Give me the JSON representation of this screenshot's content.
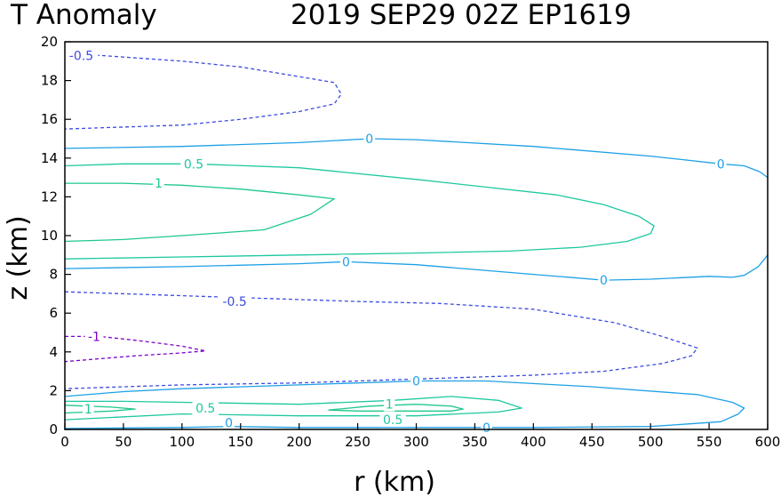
{
  "chart_data": {
    "type": "contour",
    "title_left": "T Anomaly",
    "title_right": "2019  SEP29  02Z    EP1619",
    "xlabel": "r (km)",
    "ylabel": "z (km)",
    "xlim": [
      0,
      600
    ],
    "ylim": [
      0,
      20
    ],
    "xticks": [
      "0",
      "50",
      "100",
      "150",
      "200",
      "250",
      "300",
      "350",
      "400",
      "450",
      "500",
      "550",
      "600"
    ],
    "yticks": [
      "0",
      "2",
      "4",
      "6",
      "8",
      "10",
      "12",
      "14",
      "16",
      "18",
      "20"
    ],
    "grid": false,
    "colors": {
      "neg_one": "#7b00c8",
      "neg_half": "#3c4be0",
      "zero": "#1ea0e6",
      "pos_half": "#1ec8a0",
      "pos_one": "#1ec88c"
    },
    "contours": [
      {
        "level": "-0.5",
        "style": "dashed",
        "color_key": "neg_half",
        "points": [
          [
            0,
            19.3
          ],
          [
            30,
            19.3
          ],
          [
            100,
            19.0
          ],
          [
            150,
            18.7
          ],
          [
            200,
            18.2
          ],
          [
            230,
            17.9
          ],
          [
            236,
            17.3
          ],
          [
            230,
            16.8
          ],
          [
            200,
            16.4
          ],
          [
            150,
            16.0
          ],
          [
            100,
            15.7
          ],
          [
            50,
            15.6
          ],
          [
            0,
            15.5
          ]
        ]
      },
      {
        "level": "0",
        "style": "solid",
        "color_key": "zero",
        "points": [
          [
            0,
            14.5
          ],
          [
            100,
            14.6
          ],
          [
            200,
            14.8
          ],
          [
            260,
            15.0
          ],
          [
            300,
            14.95
          ],
          [
            400,
            14.6
          ],
          [
            500,
            14.1
          ],
          [
            560,
            13.7
          ],
          [
            580,
            13.6
          ],
          [
            593,
            13.3
          ],
          [
            600,
            13.0
          ]
        ]
      },
      {
        "level": "0.5",
        "style": "solid",
        "color_key": "pos_half",
        "points": [
          [
            0,
            13.6
          ],
          [
            50,
            13.7
          ],
          [
            110,
            13.7
          ],
          [
            200,
            13.5
          ],
          [
            300,
            12.9
          ],
          [
            360,
            12.5
          ],
          [
            420,
            12.1
          ],
          [
            460,
            11.6
          ],
          [
            490,
            11.0
          ],
          [
            503,
            10.5
          ],
          [
            500,
            10.1
          ],
          [
            480,
            9.7
          ],
          [
            440,
            9.4
          ],
          [
            380,
            9.2
          ],
          [
            300,
            9.1
          ],
          [
            200,
            9.0
          ],
          [
            100,
            8.9
          ],
          [
            0,
            8.8
          ]
        ]
      },
      {
        "level": "1",
        "style": "solid",
        "color_key": "pos_one",
        "points": [
          [
            0,
            12.7
          ],
          [
            50,
            12.7
          ],
          [
            100,
            12.6
          ],
          [
            150,
            12.4
          ],
          [
            200,
            12.1
          ],
          [
            230,
            11.9
          ],
          [
            210,
            11.1
          ],
          [
            170,
            10.3
          ],
          [
            100,
            10.0
          ],
          [
            50,
            9.8
          ],
          [
            0,
            9.7
          ]
        ]
      },
      {
        "level": "0",
        "style": "solid",
        "color_key": "zero",
        "points": [
          [
            0,
            8.3
          ],
          [
            100,
            8.4
          ],
          [
            200,
            8.55
          ],
          [
            240,
            8.65
          ],
          [
            300,
            8.5
          ],
          [
            400,
            8.0
          ],
          [
            460,
            7.7
          ],
          [
            500,
            7.75
          ],
          [
            550,
            7.9
          ],
          [
            570,
            7.85
          ],
          [
            580,
            7.95
          ],
          [
            592,
            8.4
          ],
          [
            600,
            9.0
          ]
        ]
      },
      {
        "level": "-0.5",
        "style": "dashed",
        "color_key": "neg_half",
        "points": [
          [
            0,
            7.1
          ],
          [
            100,
            6.9
          ],
          [
            200,
            6.7
          ],
          [
            250,
            6.6
          ],
          [
            320,
            6.5
          ],
          [
            400,
            6.2
          ],
          [
            470,
            5.5
          ],
          [
            510,
            4.8
          ],
          [
            540,
            4.2
          ],
          [
            535,
            3.8
          ],
          [
            510,
            3.4
          ],
          [
            460,
            3.0
          ],
          [
            400,
            2.8
          ],
          [
            300,
            2.6
          ],
          [
            200,
            2.4
          ],
          [
            100,
            2.3
          ],
          [
            0,
            2.1
          ]
        ]
      },
      {
        "level": "-1",
        "style": "dashed",
        "color_key": "neg_one",
        "points": [
          [
            0,
            4.8
          ],
          [
            30,
            4.8
          ],
          [
            60,
            4.6
          ],
          [
            100,
            4.3
          ],
          [
            120,
            4.05
          ],
          [
            100,
            3.95
          ],
          [
            60,
            3.8
          ],
          [
            0,
            3.5
          ]
        ]
      },
      {
        "level": "0",
        "style": "solid",
        "color_key": "zero",
        "points": [
          [
            0,
            1.7
          ],
          [
            50,
            1.95
          ],
          [
            100,
            2.1
          ],
          [
            200,
            2.3
          ],
          [
            300,
            2.5
          ],
          [
            360,
            2.5
          ],
          [
            450,
            2.2
          ],
          [
            540,
            1.8
          ],
          [
            570,
            1.4
          ],
          [
            580,
            1.1
          ],
          [
            575,
            0.8
          ],
          [
            560,
            0.4
          ],
          [
            500,
            0.15
          ],
          [
            400,
            0.1
          ],
          [
            300,
            0.1
          ],
          [
            200,
            0.1
          ],
          [
            140,
            0.15
          ],
          [
            100,
            0.1
          ],
          [
            0,
            0.05
          ]
        ]
      },
      {
        "level": "0.5",
        "style": "solid",
        "color_key": "pos_half",
        "points": [
          [
            0,
            1.45
          ],
          [
            50,
            1.45
          ],
          [
            100,
            1.4
          ],
          [
            200,
            1.3
          ],
          [
            280,
            1.5
          ],
          [
            330,
            1.7
          ],
          [
            370,
            1.5
          ],
          [
            390,
            1.1
          ],
          [
            370,
            0.9
          ],
          [
            300,
            0.7
          ],
          [
            200,
            0.7
          ],
          [
            100,
            0.8
          ],
          [
            0,
            0.5
          ]
        ]
      },
      {
        "level": "1",
        "style": "solid",
        "color_key": "pos_one",
        "points": [
          [
            0,
            1.25
          ],
          [
            40,
            1.15
          ],
          [
            60,
            1.05
          ],
          [
            40,
            0.95
          ],
          [
            0,
            0.85
          ]
        ]
      },
      {
        "level": "1",
        "style": "solid",
        "color_key": "pos_one",
        "points": [
          [
            225,
            1.0
          ],
          [
            260,
            1.2
          ],
          [
            300,
            1.3
          ],
          [
            330,
            1.2
          ],
          [
            340,
            1.05
          ],
          [
            330,
            0.95
          ],
          [
            290,
            0.95
          ],
          [
            250,
            0.95
          ],
          [
            225,
            1.0
          ]
        ]
      }
    ],
    "contour_labels": [
      {
        "text": "-0.5",
        "x": 14,
        "y": 19.3,
        "color_key": "neg_half"
      },
      {
        "text": "0",
        "x": 260,
        "y": 15.0,
        "color_key": "zero"
      },
      {
        "text": "0",
        "x": 560,
        "y": 13.7,
        "color_key": "zero"
      },
      {
        "text": "0.5",
        "x": 110,
        "y": 13.7,
        "color_key": "pos_half"
      },
      {
        "text": "1",
        "x": 80,
        "y": 12.7,
        "color_key": "pos_one"
      },
      {
        "text": "0",
        "x": 240,
        "y": 8.65,
        "color_key": "zero"
      },
      {
        "text": "0",
        "x": 460,
        "y": 7.7,
        "color_key": "zero"
      },
      {
        "text": "-0.5",
        "x": 145,
        "y": 6.6,
        "color_key": "neg_half"
      },
      {
        "text": "-1",
        "x": 25,
        "y": 4.8,
        "color_key": "neg_one"
      },
      {
        "text": "0",
        "x": 300,
        "y": 2.5,
        "color_key": "zero"
      },
      {
        "text": "1",
        "x": 277,
        "y": 1.3,
        "color_key": "pos_one"
      },
      {
        "text": "0.5",
        "x": 120,
        "y": 1.1,
        "color_key": "pos_half"
      },
      {
        "text": "0.5",
        "x": 280,
        "y": 0.5,
        "color_key": "pos_half"
      },
      {
        "text": "1",
        "x": 20,
        "y": 1.05,
        "color_key": "pos_one"
      },
      {
        "text": "0",
        "x": 140,
        "y": 0.35,
        "color_key": "zero"
      },
      {
        "text": "0",
        "x": 360,
        "y": 0.1,
        "color_key": "zero"
      }
    ]
  }
}
